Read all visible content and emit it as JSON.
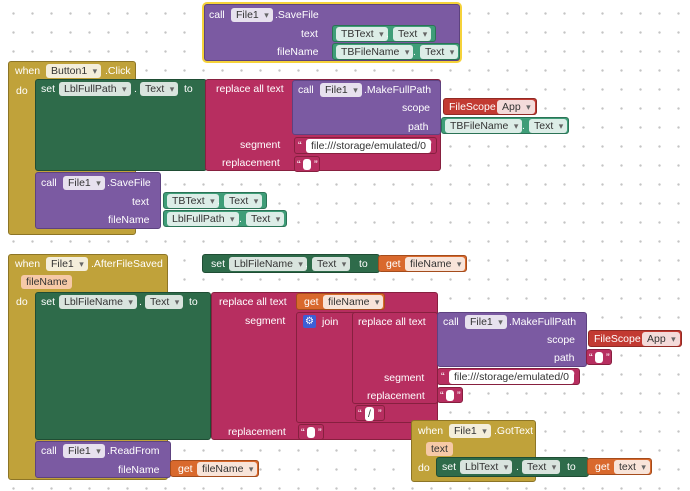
{
  "kw": {
    "call": "call",
    "set": "set",
    "get": "get",
    "to": "to",
    "when": "when",
    "do": "do",
    "text": "text",
    "fileName": "fileName",
    "scope": "scope",
    "path": "path",
    "segment": "segment",
    "replacement": "replacement",
    "replace_all_text": "replace all text",
    "join": "join",
    "quote": "“",
    "quote_close": "”",
    "dot": "."
  },
  "components": {
    "file1": "File1",
    "button1": "Button1",
    "tb_text": "TBText",
    "tb_filename": "TBFileName",
    "lbl_full_path": "LblFullPath",
    "lbl_filename": "LblFileName",
    "lbl_text": "LblText",
    "prop_text": "Text",
    "filescope": "FileScope",
    "filescope_app": "App"
  },
  "methods": {
    "save_file": ".SaveFile",
    "make_full_path": ".MakeFullPath",
    "read_from": ".ReadFrom",
    "click": ".Click",
    "after_file_saved": ".AfterFileSaved",
    "got_text": ".GotText"
  },
  "params": {
    "filename": "fileName",
    "text": "text"
  },
  "strings": {
    "storage_path": "file:///storage/emulated/0",
    "slash": "/",
    "empty": ""
  },
  "colors": {
    "event_block": "#c0a23a",
    "component_method": "#7b5aa2",
    "setter": "#2e6b4a",
    "getter_property": "#3f9d78",
    "text_block": "#b72e60",
    "variable_get": "#d9692d",
    "helper_enum": "#c23a32"
  }
}
